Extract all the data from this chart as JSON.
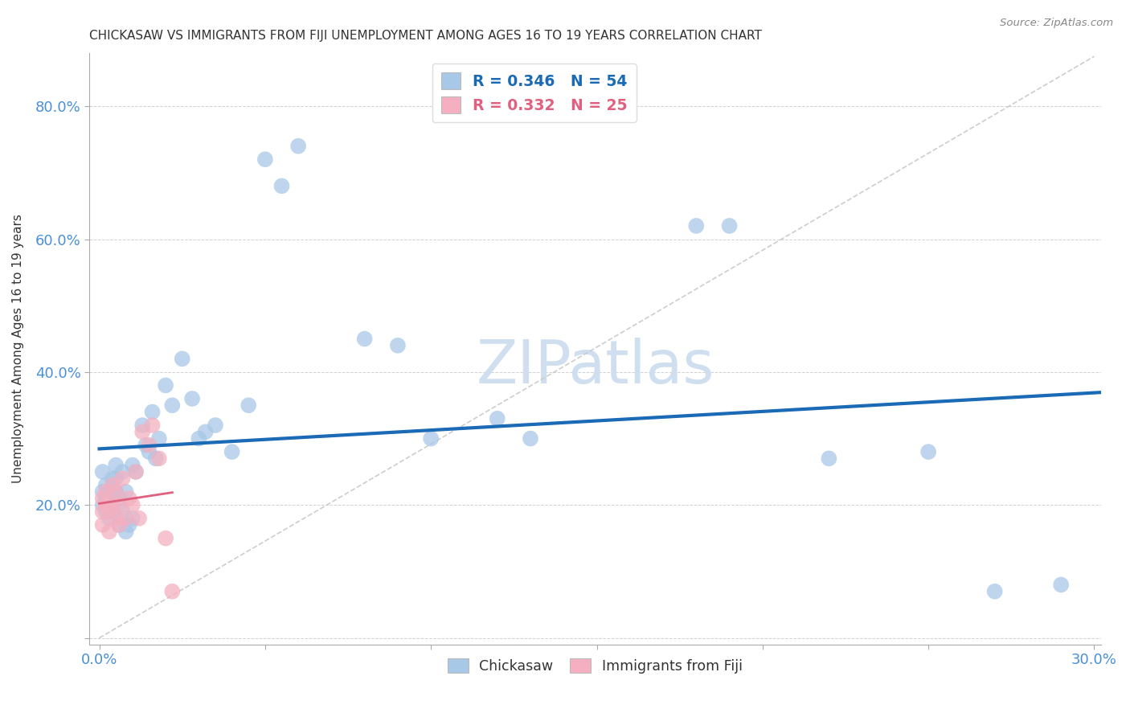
{
  "title": "CHICKASAW VS IMMIGRANTS FROM FIJI UNEMPLOYMENT AMONG AGES 16 TO 19 YEARS CORRELATION CHART",
  "source": "Source: ZipAtlas.com",
  "ylabel": "Unemployment Among Ages 16 to 19 years",
  "xlim": [
    -0.003,
    0.302
  ],
  "ylim": [
    -0.01,
    0.88
  ],
  "xtick_positions": [
    0.0,
    0.05,
    0.1,
    0.15,
    0.2,
    0.25,
    0.3
  ],
  "xticklabels": [
    "0.0%",
    "",
    "",
    "",
    "",
    "",
    "30.0%"
  ],
  "ytick_positions": [
    0.0,
    0.2,
    0.4,
    0.6,
    0.8
  ],
  "yticklabels": [
    "",
    "20.0%",
    "40.0%",
    "60.0%",
    "80.0%"
  ],
  "chickasaw_R": 0.346,
  "chickasaw_N": 54,
  "fiji_R": 0.332,
  "fiji_N": 25,
  "chickasaw_color": "#a8c8e8",
  "chickasaw_line_color": "#1a6ab5",
  "fiji_color": "#f4b0c0",
  "fiji_line_color": "#e06080",
  "ref_line_color": "#c8c8c8",
  "watermark": "ZIPatlas",
  "watermark_color": "#d0dff0",
  "chickasaw_x": [
    0.001,
    0.001,
    0.001,
    0.002,
    0.002,
    0.002,
    0.003,
    0.003,
    0.003,
    0.004,
    0.004,
    0.004,
    0.005,
    0.005,
    0.005,
    0.006,
    0.006,
    0.007,
    0.007,
    0.008,
    0.008,
    0.009,
    0.01,
    0.01,
    0.011,
    0.013,
    0.014,
    0.015,
    0.016,
    0.017,
    0.018,
    0.02,
    0.022,
    0.025,
    0.028,
    0.03,
    0.032,
    0.035,
    0.04,
    0.045,
    0.05,
    0.055,
    0.06,
    0.08,
    0.09,
    0.1,
    0.12,
    0.13,
    0.18,
    0.19,
    0.22,
    0.25,
    0.27,
    0.29
  ],
  "chickasaw_y": [
    0.22,
    0.25,
    0.2,
    0.19,
    0.23,
    0.21,
    0.18,
    0.22,
    0.2,
    0.24,
    0.21,
    0.19,
    0.26,
    0.24,
    0.22,
    0.17,
    0.21,
    0.25,
    0.19,
    0.16,
    0.22,
    0.17,
    0.26,
    0.18,
    0.25,
    0.32,
    0.29,
    0.28,
    0.34,
    0.27,
    0.3,
    0.38,
    0.35,
    0.42,
    0.36,
    0.3,
    0.31,
    0.32,
    0.28,
    0.35,
    0.72,
    0.68,
    0.74,
    0.45,
    0.44,
    0.3,
    0.33,
    0.3,
    0.62,
    0.62,
    0.27,
    0.28,
    0.07,
    0.08
  ],
  "fiji_x": [
    0.001,
    0.001,
    0.001,
    0.002,
    0.002,
    0.003,
    0.003,
    0.004,
    0.004,
    0.005,
    0.005,
    0.006,
    0.006,
    0.007,
    0.008,
    0.009,
    0.01,
    0.011,
    0.012,
    0.013,
    0.015,
    0.016,
    0.018,
    0.02,
    0.022
  ],
  "fiji_y": [
    0.21,
    0.19,
    0.17,
    0.22,
    0.2,
    0.19,
    0.16,
    0.23,
    0.2,
    0.18,
    0.22,
    0.17,
    0.2,
    0.24,
    0.18,
    0.21,
    0.2,
    0.25,
    0.18,
    0.31,
    0.29,
    0.32,
    0.27,
    0.15,
    0.07
  ],
  "fiji_trend_x0": 0.0,
  "fiji_trend_x1": 0.022,
  "chickasaw_trend_x0": 0.0,
  "chickasaw_trend_x1": 0.302
}
